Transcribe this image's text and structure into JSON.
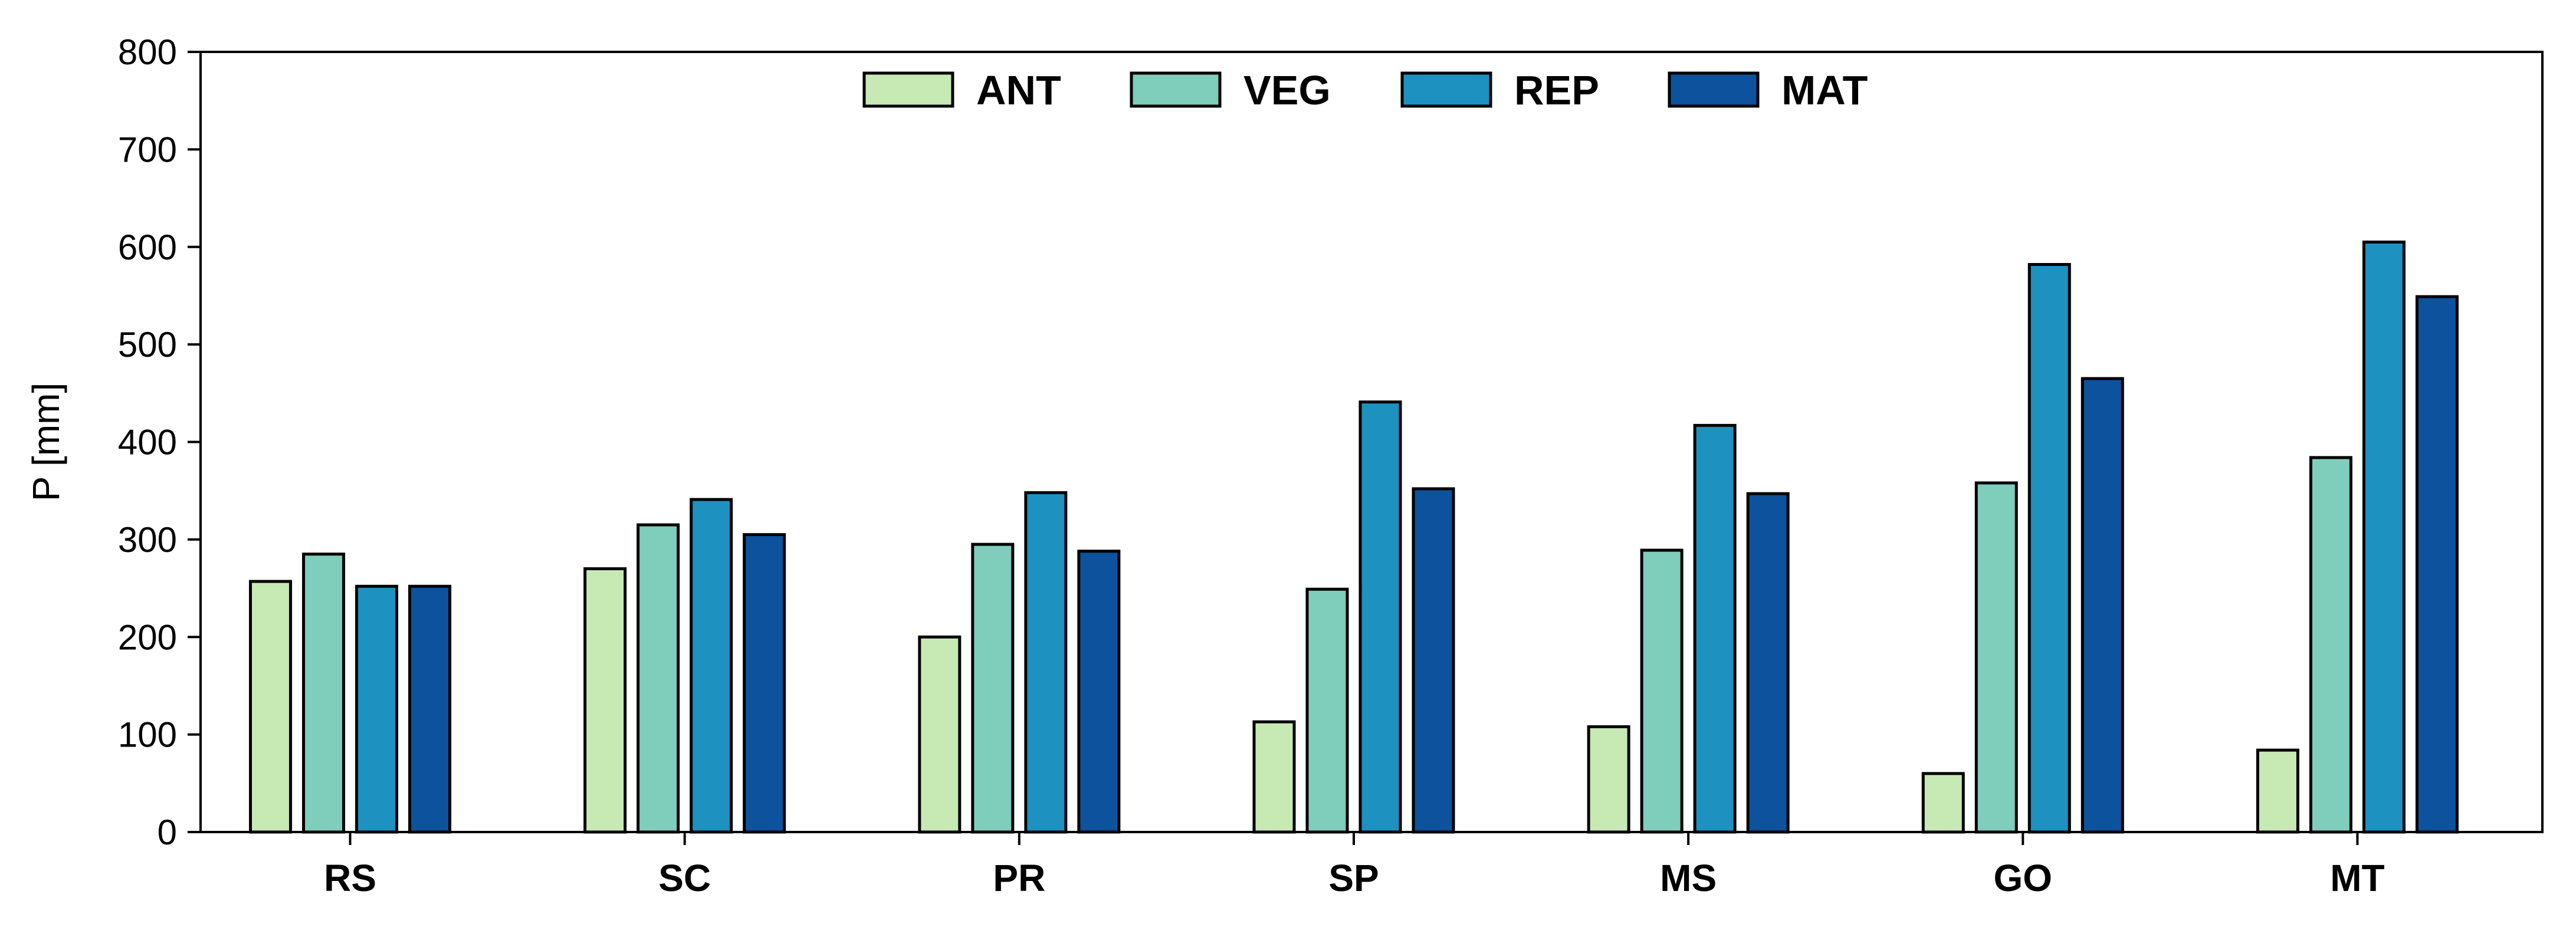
{
  "chart_data": {
    "type": "bar",
    "title": "",
    "xlabel": "",
    "ylabel": "P [mm]",
    "ylim": [
      0,
      800
    ],
    "yticks": [
      0,
      100,
      200,
      300,
      400,
      500,
      600,
      700,
      800
    ],
    "grid": false,
    "legend_position": "top-center",
    "categories": [
      "RS",
      "SC",
      "PR",
      "SP",
      "MS",
      "GO",
      "MT"
    ],
    "series": [
      {
        "name": "ANT",
        "color": "#c7e9b4",
        "values": [
          257,
          270,
          200,
          113,
          108,
          60,
          84
        ]
      },
      {
        "name": "VEG",
        "color": "#7fcdbb",
        "values": [
          285,
          315,
          295,
          249,
          289,
          358,
          384
        ]
      },
      {
        "name": "REP",
        "color": "#1d91c0",
        "values": [
          252,
          341,
          348,
          441,
          417,
          582,
          605
        ]
      },
      {
        "name": "MAT",
        "color": "#0c529c",
        "values": [
          252,
          305,
          288,
          352,
          347,
          465,
          549
        ]
      }
    ]
  }
}
